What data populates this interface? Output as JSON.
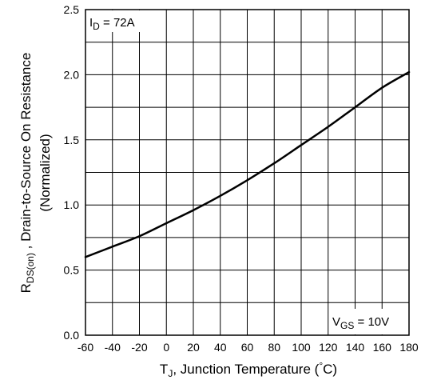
{
  "chart_data": {
    "type": "line",
    "x": [
      -60,
      -40,
      -20,
      0,
      20,
      40,
      60,
      80,
      100,
      120,
      140,
      160,
      180
    ],
    "series": [
      {
        "values": [
          0.6,
          0.68,
          0.76,
          0.86,
          0.96,
          1.07,
          1.19,
          1.32,
          1.46,
          1.6,
          1.75,
          1.9,
          2.02
        ]
      }
    ],
    "xlim": [
      -60,
      180
    ],
    "ylim": [
      0.0,
      2.5
    ],
    "xticks": [
      "-60",
      "-40",
      "-20",
      "0",
      "20",
      "40",
      "60",
      "80",
      "100",
      "120",
      "140",
      "160",
      "180"
    ],
    "yticks": [
      "0.0",
      "0.5",
      "1.0",
      "1.5",
      "2.0",
      "2.5"
    ],
    "xlabel": {
      "main": "T",
      "sub": "J",
      "rest": ", Junction Temperature (",
      "degree": "°",
      "unit": "C)"
    },
    "ylabel": {
      "r": "R",
      "sub": "DS(on)",
      "rest": " ,  Drain-to-Source On Resistance",
      "line2": "(Normalized)"
    },
    "annotations": {
      "id": {
        "main": "I",
        "sub": "D",
        "rest": " = 72A"
      },
      "vgs": {
        "main": "V",
        "sub": "GS",
        "rest": " = 10V"
      }
    },
    "grid": true,
    "line_color": "#000000"
  }
}
